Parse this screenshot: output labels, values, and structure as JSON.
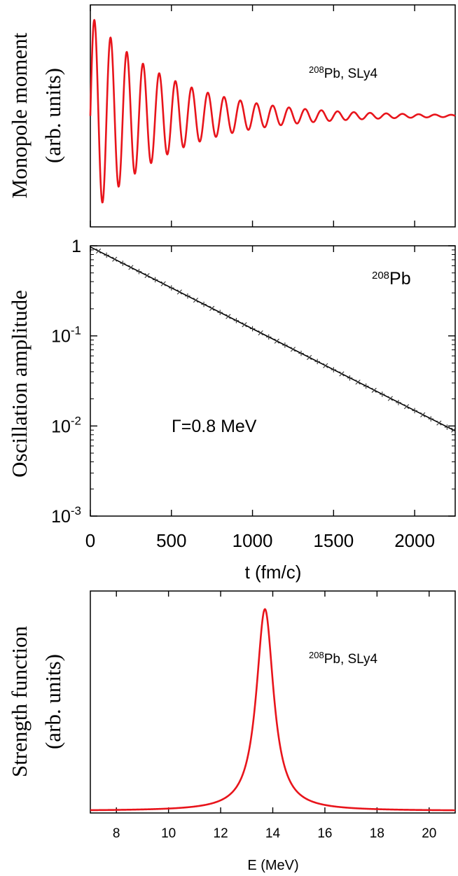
{
  "chart_data": [
    {
      "type": "line",
      "title": "",
      "xlabel": "",
      "ylabel_line1": "Monopole moment",
      "ylabel_line2": "(arb. units)",
      "annotation": {
        "sup": "208",
        "text": "Pb, SLy4"
      },
      "xlim": [
        0,
        2250
      ],
      "ylim": [
        -1.1,
        1.1
      ],
      "x_ticks": [
        0,
        500,
        1000,
        1500,
        2000
      ],
      "x_tick_labels": [],
      "y_ticks": [],
      "grid": false,
      "legend": "none",
      "series": [
        {
          "name": "monopole moment",
          "color": "#e8141b",
          "model": "damped-oscillation",
          "amplitude": 1.0,
          "period_fm_c": 100,
          "decay_width_MeV": 0.8,
          "baseline": 0,
          "x_start": 0,
          "x_end": 2250,
          "samples": 1100
        }
      ]
    },
    {
      "type": "scatter",
      "title": "",
      "xlabel": "t (fm/c)",
      "ylabel": "Oscillation amplitude",
      "yscale": "log",
      "annotation": {
        "sup": "208",
        "text": "Pb"
      },
      "gamma_label": "Γ=0.8 MeV",
      "xlim": [
        0,
        2250
      ],
      "ylim": [
        0.001,
        1
      ],
      "x_ticks": [
        0,
        500,
        1000,
        1500,
        2000
      ],
      "x_tick_labels": [
        "0",
        "500",
        "1000",
        "1500",
        "2000"
      ],
      "y_ticks": [
        1,
        0.1,
        0.01,
        0.001
      ],
      "y_tick_labels": [
        {
          "base": "1",
          "exp": ""
        },
        {
          "base": "10",
          "exp": "-1"
        },
        {
          "base": "10",
          "exp": "-2"
        },
        {
          "base": "10",
          "exp": "-3"
        }
      ],
      "grid": false,
      "legend": "none",
      "fit": {
        "name": "exponential fit",
        "color": "#000000",
        "y_at_0": 0.97,
        "y_at_2250": 0.0088
      },
      "series": [
        {
          "name": "maxima (x)",
          "marker": "x",
          "color": "#333333",
          "x": [
            50,
            150,
            250,
            350,
            450,
            550,
            650,
            750,
            850,
            950,
            1050,
            1150,
            1250,
            1350,
            1450,
            1550,
            1650,
            1750,
            1850,
            1950,
            2050,
            2150,
            2240
          ],
          "y": [
            0.874,
            0.709,
            0.575,
            0.467,
            0.379,
            0.307,
            0.249,
            0.202,
            0.164,
            0.133,
            0.108,
            0.0875,
            0.071,
            0.0576,
            0.0467,
            0.0379,
            0.0307,
            0.0249,
            0.0202,
            0.0164,
            0.0133,
            0.0108,
            0.009
          ]
        },
        {
          "name": "minima (+)",
          "marker": "+",
          "color": "#333333",
          "x": [
            100,
            200,
            300,
            400,
            500,
            600,
            700,
            800,
            900,
            1000,
            1100,
            1200,
            1300,
            1400,
            1500,
            1600,
            1700,
            1800,
            1900,
            2000,
            2100,
            2200
          ],
          "y": [
            0.787,
            0.638,
            0.518,
            0.42,
            0.341,
            0.277,
            0.224,
            0.182,
            0.148,
            0.12,
            0.0973,
            0.0789,
            0.064,
            0.0519,
            0.0421,
            0.0341,
            0.0277,
            0.0225,
            0.0182,
            0.0148,
            0.012,
            0.0097
          ]
        }
      ]
    },
    {
      "type": "line",
      "title": "",
      "xlabel": "E (MeV)",
      "ylabel_line1": "Strength function",
      "ylabel_line2": "(arb. units)",
      "annotation": {
        "sup": "208",
        "text": "Pb, SLy4"
      },
      "xlim": [
        7,
        21
      ],
      "ylim": [
        0,
        1.1
      ],
      "x_ticks": [
        8,
        10,
        12,
        14,
        16,
        18,
        20
      ],
      "x_tick_labels": [
        "8",
        "10",
        "12",
        "14",
        "16",
        "18",
        "20"
      ],
      "y_ticks": [],
      "grid": false,
      "legend": "none",
      "series": [
        {
          "name": "strength function",
          "color": "#e8141b",
          "model": "lorentzian",
          "centroid_MeV": 13.7,
          "fwhm_MeV": 0.8,
          "peak": 1.0,
          "x_start": 7,
          "x_end": 21,
          "samples": 700
        }
      ]
    }
  ]
}
